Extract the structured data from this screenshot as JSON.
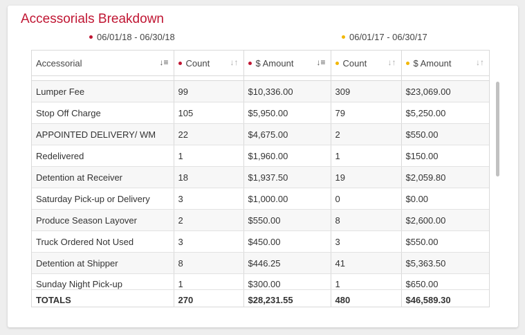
{
  "title": "Accessorials Breakdown",
  "colors": {
    "accent": "#c01633",
    "period_current": "#c01633",
    "period_previous": "#f2b705"
  },
  "periods": {
    "current": "06/01/18 - 06/30/18",
    "previous": "06/01/17 - 06/30/17"
  },
  "headers": {
    "accessorial": "Accessorial",
    "count_current": "Count",
    "amount_current": "$ Amount",
    "count_previous": "Count",
    "amount_previous": "$ Amount"
  },
  "icons": {
    "sort_asc_active": "sort-ascending-icon",
    "sort_neutral": "sort-neutral-icon",
    "sort_desc_active": "sort-descending-icon"
  },
  "rows": [
    {
      "name": "Lumper Fee",
      "c1": "99",
      "a1": "$10,336.00",
      "c2": "309",
      "a2": "$23,069.00"
    },
    {
      "name": "Stop Off Charge",
      "c1": "105",
      "a1": "$5,950.00",
      "c2": "79",
      "a2": "$5,250.00"
    },
    {
      "name": "APPOINTED DELIVERY/ WM",
      "c1": "22",
      "a1": "$4,675.00",
      "c2": "2",
      "a2": "$550.00"
    },
    {
      "name": "Redelivered",
      "c1": "1",
      "a1": "$1,960.00",
      "c2": "1",
      "a2": "$150.00"
    },
    {
      "name": "Detention at Receiver",
      "c1": "18",
      "a1": "$1,937.50",
      "c2": "19",
      "a2": "$2,059.80"
    },
    {
      "name": "Saturday Pick-up or Delivery",
      "c1": "3",
      "a1": "$1,000.00",
      "c2": "0",
      "a2": "$0.00"
    },
    {
      "name": "Produce Season Layover",
      "c1": "2",
      "a1": "$550.00",
      "c2": "8",
      "a2": "$2,600.00"
    },
    {
      "name": "Truck Ordered Not Used",
      "c1": "3",
      "a1": "$450.00",
      "c2": "3",
      "a2": "$550.00"
    },
    {
      "name": "Detention at Shipper",
      "c1": "8",
      "a1": "$446.25",
      "c2": "41",
      "a2": "$5,363.50"
    },
    {
      "name": "Sunday Night Pick-up",
      "c1": "1",
      "a1": "$300.00",
      "c2": "1",
      "a2": "$650.00"
    }
  ],
  "totals": {
    "label": "TOTALS",
    "c1": "270",
    "a1": "$28,231.55",
    "c2": "480",
    "a2": "$46,589.30"
  }
}
